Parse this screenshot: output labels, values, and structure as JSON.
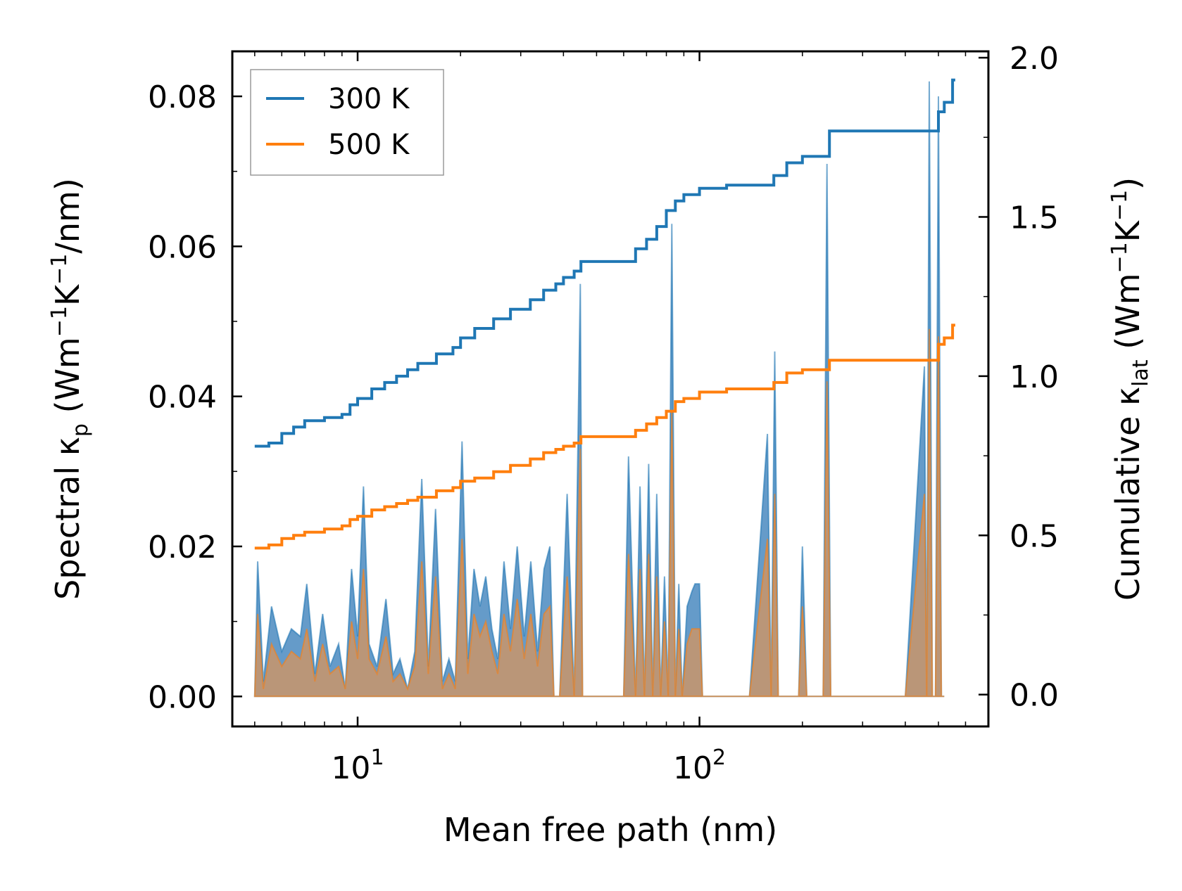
{
  "chart_data": {
    "type": "line",
    "xlabel": "Mean free path (nm)",
    "xscale": "log",
    "xlim": [
      4.3,
      700
    ],
    "x_ticks": [
      {
        "value": 10,
        "base": "10",
        "exp": "1"
      },
      {
        "value": 100,
        "base": "10",
        "exp": "2"
      }
    ],
    "left_axis": {
      "label_parts": {
        "pre": "Spectral κ",
        "sub": "p",
        "mid": " (Wm",
        "sup1": "−1",
        "mid2": "K",
        "sup2": "−1",
        "post": "/nm)"
      },
      "ylim": [
        -0.004,
        0.086
      ],
      "ticks": [
        0.0,
        0.02,
        0.04,
        0.06,
        0.08
      ],
      "tick_labels": [
        "0.00",
        "0.02",
        "0.04",
        "0.06",
        "0.08"
      ]
    },
    "right_axis": {
      "label_parts": {
        "pre": "Cumulative κ",
        "sub": "lat",
        "mid": " (Wm",
        "sup1": "−1",
        "mid2": "K",
        "sup2": "−1",
        "post": ")"
      },
      "ylim": [
        -0.1,
        2.02
      ],
      "ticks": [
        0.0,
        0.5,
        1.0,
        1.5,
        2.0
      ],
      "tick_labels": [
        "0.0",
        "0.5",
        "1.0",
        "1.5",
        "2.0"
      ]
    },
    "legend": {
      "position": "top-left",
      "entries": [
        "300 K",
        "500 K"
      ]
    },
    "colors": {
      "blue": "#1f77b4",
      "orange": "#ff7f0e",
      "fill_blue": "#4a89bf",
      "fill_orange": "#c9956a",
      "spine": "#000000",
      "legend_border": "#9a9a9a"
    },
    "series": [
      {
        "name": "300 K",
        "color": "#1f77b4",
        "axis": "right",
        "x": [
          5,
          5.5,
          6,
          6.5,
          7,
          8,
          9,
          9.5,
          10,
          11,
          12,
          13,
          14,
          15,
          17,
          19,
          20,
          22,
          25,
          28,
          32,
          35,
          38,
          40,
          43,
          45,
          50,
          60,
          65,
          70,
          75,
          80,
          85,
          90,
          100,
          120,
          150,
          165,
          180,
          200,
          240,
          300,
          400,
          480,
          500,
          520,
          550,
          560
        ],
        "values": [
          0.78,
          0.79,
          0.82,
          0.84,
          0.86,
          0.87,
          0.88,
          0.91,
          0.93,
          0.96,
          0.98,
          1.0,
          1.02,
          1.04,
          1.07,
          1.09,
          1.12,
          1.15,
          1.18,
          1.21,
          1.24,
          1.27,
          1.29,
          1.31,
          1.33,
          1.36,
          1.36,
          1.36,
          1.4,
          1.43,
          1.47,
          1.52,
          1.55,
          1.57,
          1.59,
          1.6,
          1.6,
          1.63,
          1.67,
          1.69,
          1.77,
          1.77,
          1.77,
          1.77,
          1.83,
          1.86,
          1.93,
          1.93
        ]
      },
      {
        "name": "500 K",
        "color": "#ff7f0e",
        "axis": "right",
        "x": [
          5,
          5.5,
          6,
          6.5,
          7,
          8,
          9,
          9.5,
          10,
          11,
          12,
          13,
          14,
          15,
          17,
          19,
          20,
          22,
          25,
          28,
          32,
          35,
          38,
          40,
          43,
          45,
          50,
          60,
          65,
          70,
          75,
          80,
          85,
          90,
          100,
          120,
          150,
          165,
          180,
          200,
          240,
          300,
          400,
          480,
          500,
          520,
          550,
          560
        ],
        "values": [
          0.46,
          0.47,
          0.49,
          0.5,
          0.51,
          0.52,
          0.53,
          0.55,
          0.56,
          0.58,
          0.59,
          0.6,
          0.61,
          0.62,
          0.64,
          0.65,
          0.67,
          0.68,
          0.7,
          0.72,
          0.74,
          0.76,
          0.77,
          0.78,
          0.79,
          0.81,
          0.81,
          0.81,
          0.83,
          0.85,
          0.87,
          0.89,
          0.92,
          0.93,
          0.95,
          0.96,
          0.96,
          0.98,
          1.01,
          1.02,
          1.05,
          1.05,
          1.05,
          1.05,
          1.1,
          1.12,
          1.16,
          1.16
        ]
      },
      {
        "name": "Spectral 300 K",
        "color": "#1f77b4",
        "axis": "left",
        "x": [
          5,
          5.1,
          5.3,
          5.6,
          6,
          6.4,
          6.8,
          7.1,
          7.5,
          7.9,
          8.3,
          8.8,
          9.2,
          9.6,
          10,
          10.4,
          10.8,
          11.4,
          12.1,
          12.7,
          13.3,
          14,
          14.7,
          15.4,
          16.1,
          16.9,
          17.7,
          18.5,
          19.3,
          20.2,
          21,
          21.9,
          22.8,
          23.7,
          24.7,
          25.7,
          26.8,
          28,
          29.3,
          30.7,
          32.1,
          33.6,
          35.1,
          36.5,
          37.5,
          39,
          41,
          43,
          44.8,
          45.5,
          46.5,
          48,
          55,
          60,
          62,
          65,
          67,
          69,
          71,
          73,
          75,
          77,
          79,
          81,
          83,
          85,
          87,
          89,
          92,
          95,
          97,
          100,
          102,
          140,
          158,
          162,
          166,
          170,
          175,
          180,
          195,
          200,
          206,
          230,
          236,
          242,
          250,
          400,
          455,
          462,
          470,
          480,
          490,
          500,
          510,
          520
        ],
        "values": [
          0,
          0.018,
          0.002,
          0.012,
          0.006,
          0.009,
          0.008,
          0.015,
          0.003,
          0.011,
          0.004,
          0.007,
          0.001,
          0.017,
          0.008,
          0.028,
          0.007,
          0.004,
          0.013,
          0.003,
          0.005,
          0.001,
          0.006,
          0.029,
          0.004,
          0.025,
          0.002,
          0.005,
          0.002,
          0.034,
          0.005,
          0.017,
          0.012,
          0.016,
          0.009,
          0.005,
          0.018,
          0.009,
          0.02,
          0.008,
          0.018,
          0.006,
          0.017,
          0.02,
          0,
          0,
          0.027,
          0,
          0.055,
          0,
          0,
          0,
          0,
          0,
          0.032,
          0,
          0.028,
          0,
          0.031,
          0,
          0.027,
          0,
          0.016,
          0,
          0.063,
          0,
          0.015,
          0,
          0.012,
          0.014,
          0.015,
          0.015,
          0,
          0,
          0.035,
          0,
          0.046,
          0,
          0,
          0,
          0,
          0.02,
          0,
          0,
          0.071,
          0,
          0,
          0,
          0.044,
          0,
          0.082,
          0,
          0,
          0.08,
          0,
          0
        ]
      },
      {
        "name": "Spectral 500 K",
        "color": "#ff7f0e",
        "axis": "left",
        "x": [
          5,
          5.1,
          5.3,
          5.6,
          6,
          6.4,
          6.8,
          7.1,
          7.5,
          7.9,
          8.3,
          8.8,
          9.2,
          9.6,
          10,
          10.4,
          10.8,
          11.4,
          12.1,
          12.7,
          13.3,
          14,
          14.7,
          15.4,
          16.1,
          16.9,
          17.7,
          18.5,
          19.3,
          20.2,
          21,
          21.9,
          22.8,
          23.7,
          24.7,
          25.7,
          26.8,
          28,
          29.3,
          30.7,
          32.1,
          33.6,
          35.1,
          36.5,
          37.5,
          39,
          41,
          43,
          44.8,
          45.5,
          46.5,
          48,
          55,
          60,
          62,
          65,
          67,
          69,
          71,
          73,
          75,
          77,
          79,
          81,
          83,
          85,
          87,
          89,
          92,
          95,
          97,
          100,
          102,
          140,
          158,
          162,
          166,
          170,
          175,
          180,
          195,
          200,
          206,
          230,
          236,
          242,
          250,
          400,
          455,
          462,
          470,
          480,
          490,
          500,
          510,
          520
        ],
        "values": [
          0,
          0.011,
          0.001,
          0.007,
          0.004,
          0.006,
          0.005,
          0.009,
          0.002,
          0.007,
          0.003,
          0.004,
          0.001,
          0.01,
          0.005,
          0.017,
          0.005,
          0.003,
          0.008,
          0.002,
          0.003,
          0.001,
          0.004,
          0.018,
          0.003,
          0.016,
          0.001,
          0.003,
          0.001,
          0.021,
          0.003,
          0.011,
          0.008,
          0.01,
          0.006,
          0.003,
          0.011,
          0.006,
          0.013,
          0.005,
          0.011,
          0.004,
          0.011,
          0.012,
          0,
          0,
          0.016,
          0,
          0.033,
          0,
          0,
          0,
          0,
          0,
          0.019,
          0,
          0.017,
          0,
          0.019,
          0,
          0.016,
          0,
          0.01,
          0,
          0.038,
          0,
          0.009,
          0,
          0.007,
          0.009,
          0.009,
          0.009,
          0,
          0,
          0.021,
          0,
          0.027,
          0,
          0,
          0,
          0,
          0.012,
          0,
          0,
          0.042,
          0,
          0,
          0,
          0.027,
          0,
          0.049,
          0,
          0,
          0.048,
          0,
          0
        ]
      }
    ]
  }
}
